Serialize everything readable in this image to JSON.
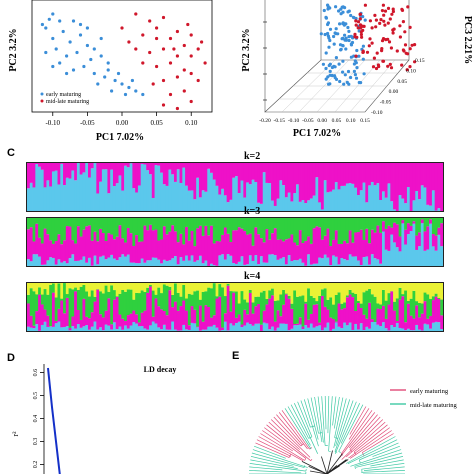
{
  "colors": {
    "early": "#3b8ed8",
    "late": "#d0172b",
    "cyan": "#5bc8ec",
    "magenta": "#ee11c8",
    "green": "#2fd03e",
    "yellow": "#eaf235",
    "ld_line": "#1430c8",
    "tree_early": "#e04a77",
    "tree_late": "#3ec9a4"
  },
  "panelC": {
    "letter": "C",
    "k_labels": [
      "k=2",
      "k=3",
      "k=4"
    ]
  },
  "panelD": {
    "letter": "D",
    "title": "LD decay",
    "ylabel": "r²",
    "yticks": [
      "0.6",
      "0.5",
      "0.4",
      "0.3",
      "0.2"
    ]
  },
  "panelE": {
    "letter": "E",
    "legend": [
      "early maturing",
      "mid-late maturing"
    ]
  },
  "chart_data": [
    {
      "type": "scatter",
      "title": "",
      "xlabel": "PC1 7.02%",
      "ylabel": "PC2 3.2%",
      "xticks": [
        "-0.10",
        "-0.05",
        "0.00",
        "0.05",
        "0.10"
      ],
      "xlim": [
        -0.13,
        0.13
      ],
      "ylim": [
        -0.06,
        0.26
      ],
      "legend": [
        "early maturing",
        "mid-late maturing"
      ],
      "legend_position": "bottom-left",
      "series": [
        {
          "name": "early maturing",
          "points": [
            [
              -0.1,
              0.22
            ],
            [
              -0.09,
              0.2
            ],
            [
              -0.11,
              0.18
            ],
            [
              -0.085,
              0.17
            ],
            [
              -0.06,
              0.19
            ],
            [
              -0.075,
              0.14
            ],
            [
              -0.1,
              0.15
            ],
            [
              -0.05,
              0.13
            ],
            [
              -0.065,
              0.11
            ],
            [
              -0.08,
              0.1
            ],
            [
              -0.095,
              0.12
            ],
            [
              -0.045,
              0.09
            ],
            [
              -0.03,
              0.1
            ],
            [
              -0.055,
              0.07
            ],
            [
              -0.07,
              0.06
            ],
            [
              -0.04,
              0.05
            ],
            [
              -0.02,
              0.06
            ],
            [
              -0.025,
              0.04
            ],
            [
              -0.01,
              0.03
            ],
            [
              0.0,
              0.02
            ],
            [
              -0.035,
              0.02
            ],
            [
              0.01,
              0.01
            ],
            [
              -0.015,
              0.0
            ],
            [
              0.02,
              0.0
            ],
            [
              0.005,
              -0.01
            ],
            [
              -0.06,
              0.16
            ],
            [
              -0.09,
              0.08
            ],
            [
              -0.11,
              0.11
            ],
            [
              -0.04,
              0.12
            ],
            [
              -0.02,
              0.08
            ],
            [
              -0.105,
              0.205
            ],
            [
              -0.115,
              0.19
            ],
            [
              0.03,
              -0.01
            ],
            [
              -0.07,
              0.2
            ],
            [
              -0.05,
              0.18
            ],
            [
              -0.03,
              0.15
            ],
            [
              -0.08,
              0.05
            ],
            [
              -0.1,
              0.07
            ],
            [
              0.015,
              0.03
            ],
            [
              -0.005,
              0.05
            ]
          ]
        },
        {
          "name": "mid-late maturing",
          "points": [
            [
              0.02,
              0.22
            ],
            [
              0.04,
              0.2
            ],
            [
              0.05,
              0.18
            ],
            [
              0.06,
              0.21
            ],
            [
              0.03,
              0.16
            ],
            [
              0.07,
              0.15
            ],
            [
              0.08,
              0.17
            ],
            [
              0.1,
              0.16
            ],
            [
              0.09,
              0.13
            ],
            [
              0.06,
              0.12
            ],
            [
              0.08,
              0.1
            ],
            [
              0.1,
              0.1
            ],
            [
              0.11,
              0.12
            ],
            [
              0.07,
              0.08
            ],
            [
              0.09,
              0.06
            ],
            [
              0.1,
              0.05
            ],
            [
              0.08,
              0.04
            ],
            [
              0.11,
              0.03
            ],
            [
              0.06,
              0.03
            ],
            [
              0.05,
              0.07
            ],
            [
              0.04,
              0.11
            ],
            [
              0.03,
              0.08
            ],
            [
              0.02,
              0.12
            ],
            [
              0.09,
              0.0
            ],
            [
              0.07,
              -0.01
            ],
            [
              0.1,
              -0.03
            ],
            [
              0.06,
              -0.04
            ],
            [
              0.08,
              -0.05
            ],
            [
              0.12,
              0.08
            ],
            [
              0.115,
              0.14
            ],
            [
              0.05,
              0.15
            ],
            [
              0.0,
              0.18
            ],
            [
              0.01,
              0.14
            ],
            [
              0.095,
              0.19
            ],
            [
              0.045,
              0.02
            ],
            [
              0.075,
              0.12
            ]
          ]
        }
      ]
    },
    {
      "type": "scatter",
      "title": "",
      "xlabel": "PC1 7.02%",
      "ylabel": "PC2 3.2%",
      "zlabel": "PC3 2.21%",
      "xticks": [
        "-0.20",
        "-0.15",
        "-0.10",
        "-0.05",
        "0.00",
        "0.05",
        "0.10",
        "0.15"
      ],
      "zticks": [
        "0.15",
        "0.10",
        "0.05",
        "0.00",
        "-0.05",
        "-0.10"
      ],
      "yticks": [
        "0.15",
        "0.10",
        "0.05",
        "0.00"
      ],
      "axis_note": "3D projection",
      "series": [
        {
          "name": "early maturing",
          "count": 120
        },
        {
          "name": "mid-late maturing",
          "count": 90
        }
      ]
    },
    {
      "type": "bar",
      "title": "k=2",
      "stacked": true,
      "n_samples": 150,
      "components": [
        "cyan",
        "magenta"
      ]
    },
    {
      "type": "bar",
      "title": "k=3",
      "stacked": true,
      "n_samples": 150,
      "components": [
        "cyan",
        "magenta",
        "green"
      ]
    },
    {
      "type": "bar",
      "title": "k=4",
      "stacked": true,
      "n_samples": 150,
      "components": [
        "cyan",
        "magenta",
        "green",
        "yellow"
      ]
    },
    {
      "type": "line",
      "title": "LD decay",
      "ylabel": "r²",
      "yticks": [
        "0.6",
        "0.5",
        "0.4",
        "0.3",
        "0.2"
      ],
      "ylim": [
        0.15,
        0.62
      ],
      "x": [
        0,
        1,
        2,
        3
      ],
      "y": [
        0.62,
        0.45,
        0.3,
        0.15
      ]
    }
  ]
}
